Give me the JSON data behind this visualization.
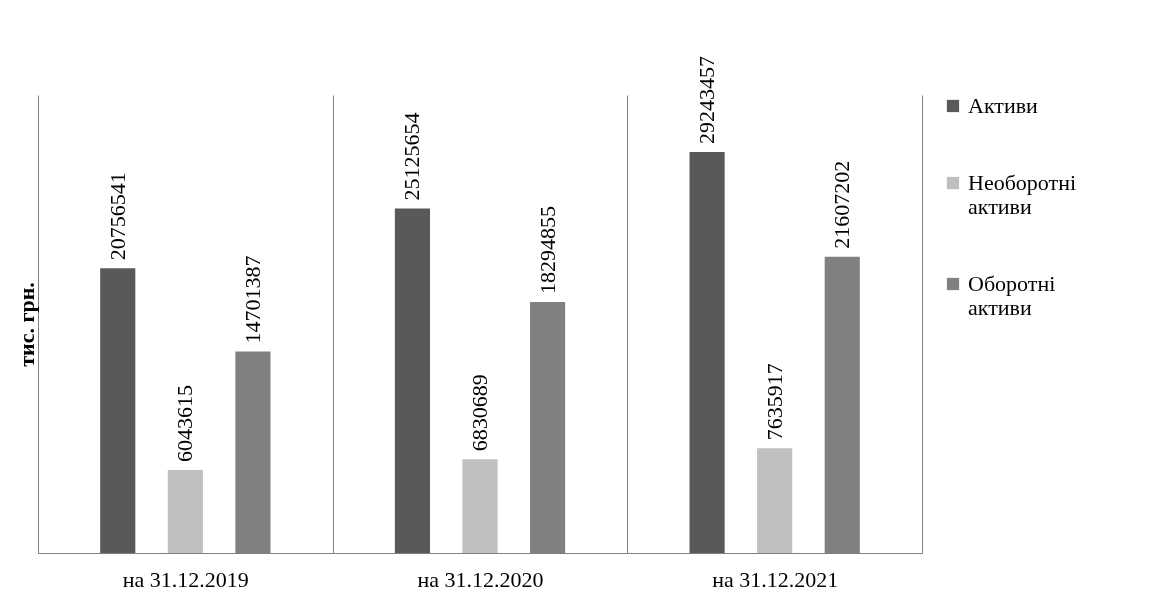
{
  "chart_data": {
    "type": "bar",
    "ylabel": "тис. грн.",
    "categories": [
      "на 31.12.2019",
      "на 31.12.2020",
      "на 31.12.2021"
    ],
    "series": [
      {
        "name": "Активи",
        "color": "#595959",
        "values": [
          20756541,
          25125654,
          29243457
        ]
      },
      {
        "name": "Необоротні активи",
        "color": "#bfbfbf",
        "values": [
          6043615,
          6830689,
          7635917
        ]
      },
      {
        "name": "Оборотні активи",
        "color": "#808080",
        "values": [
          14701387,
          18294855,
          21607202
        ]
      }
    ],
    "data_labels": true,
    "legend": "right",
    "grid": "x"
  }
}
